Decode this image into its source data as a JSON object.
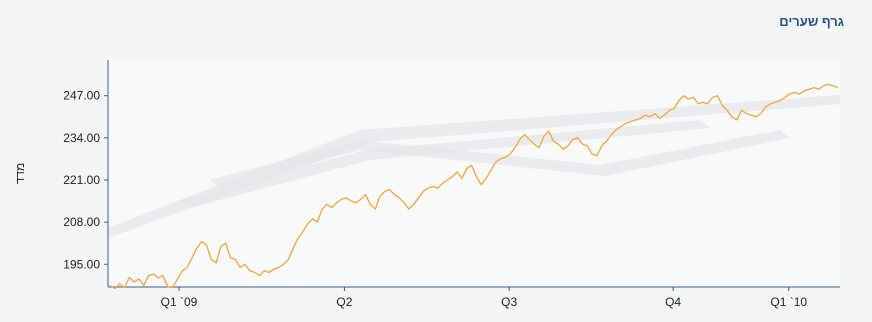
{
  "panel": {
    "title": "גרף שערים"
  },
  "chart_data": {
    "type": "line",
    "title": "",
    "xlabel": "",
    "ylabel": "מדד",
    "ylim": [
      188,
      258
    ],
    "y_ticks": [
      "195.00",
      "208.00",
      "221.00",
      "234.00",
      "247.00"
    ],
    "y_tick_values": [
      195,
      208,
      221,
      234,
      247
    ],
    "x_tick_labels": [
      "Q1 `09",
      "Q2",
      "Q3",
      "Q4",
      "Q1 `10"
    ],
    "x_tick_positions": [
      0.097,
      0.323,
      0.548,
      0.772,
      0.93
    ],
    "grid": false,
    "legend": "none",
    "line_color": "#f0a636",
    "series": [
      {
        "values": [
          188.5,
          187.5,
          189.0,
          187.8,
          191.0,
          189.5,
          190.5,
          188.5,
          191.5,
          192.0,
          190.8,
          191.5,
          188.0,
          187.8,
          190.5,
          193.0,
          194.0,
          197.0,
          200.0,
          202.0,
          201.0,
          196.5,
          195.5,
          200.5,
          201.5,
          197.0,
          196.5,
          194.0,
          195.0,
          193.0,
          192.5,
          191.5,
          193.0,
          192.5,
          193.5,
          194.0,
          195.0,
          196.5,
          200.0,
          203.0,
          205.0,
          207.5,
          209.0,
          208.0,
          212.0,
          213.5,
          212.5,
          214.0,
          215.0,
          215.5,
          214.5,
          214.0,
          215.0,
          216.5,
          213.5,
          212.0,
          216.0,
          217.5,
          218.0,
          216.5,
          215.5,
          214.0,
          212.0,
          213.5,
          215.5,
          217.5,
          218.5,
          219.0,
          218.5,
          220.0,
          221.0,
          222.0,
          223.5,
          221.5,
          224.5,
          225.5,
          222.0,
          219.5,
          221.5,
          224.0,
          226.5,
          227.5,
          228.0,
          229.0,
          231.0,
          233.5,
          235.0,
          233.5,
          232.0,
          231.0,
          234.5,
          236.0,
          233.0,
          232.0,
          230.5,
          231.5,
          233.5,
          234.0,
          232.0,
          231.5,
          229.0,
          228.5,
          231.5,
          233.0,
          235.0,
          236.5,
          237.5,
          238.5,
          239.0,
          239.5,
          240.0,
          241.0,
          240.5,
          241.5,
          240.0,
          241.0,
          242.5,
          243.0,
          245.5,
          247.0,
          246.0,
          246.5,
          244.5,
          245.0,
          244.5,
          246.5,
          247.0,
          244.0,
          242.5,
          240.5,
          239.5,
          242.5,
          241.5,
          241.0,
          240.5,
          241.5,
          243.5,
          244.5,
          245.0,
          245.5,
          246.5,
          247.5,
          248.0,
          247.5,
          248.5,
          249.0,
          249.5,
          249.0,
          250.0,
          250.5,
          250.0,
          249.5
        ]
      }
    ]
  }
}
